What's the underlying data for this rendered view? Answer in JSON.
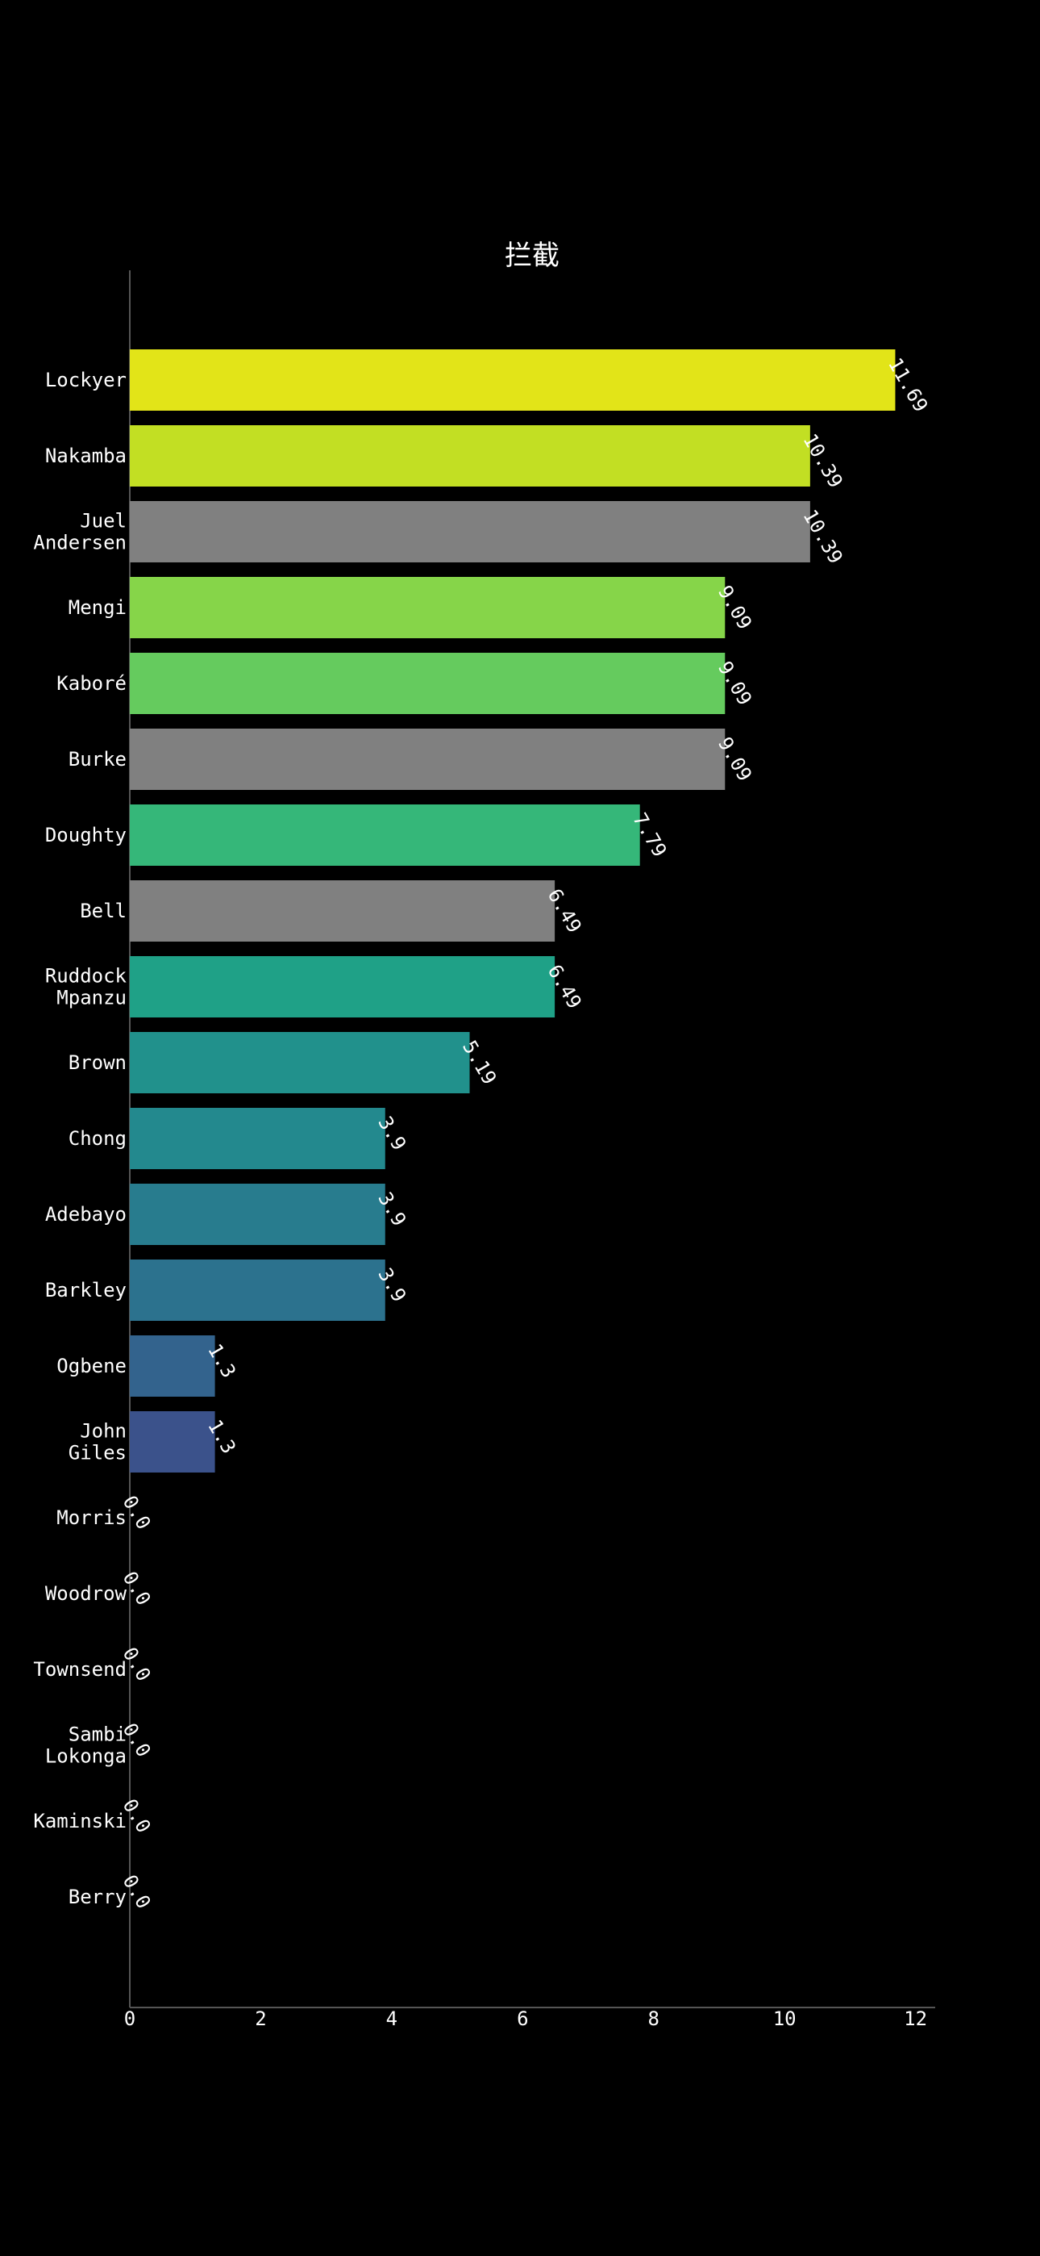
{
  "chart_data": {
    "type": "bar",
    "orientation": "horizontal",
    "title": "拦截",
    "xlabel": "",
    "ylabel": "",
    "xlim": [
      0,
      12.3
    ],
    "xticks": [
      0,
      2,
      4,
      6,
      8,
      10,
      12
    ],
    "xtick_labels": [
      "0",
      "2",
      "4",
      "6",
      "8",
      "10",
      "12"
    ],
    "grid": false,
    "categories": [
      [
        "Lockyer"
      ],
      [
        "Nakamba"
      ],
      [
        "Juel",
        "Andersen"
      ],
      [
        "Mengi"
      ],
      [
        "Kaboré"
      ],
      [
        "Burke"
      ],
      [
        "Doughty"
      ],
      [
        "Bell"
      ],
      [
        "Ruddock",
        "Mpanzu"
      ],
      [
        "Brown"
      ],
      [
        "Chong"
      ],
      [
        "Adebayo"
      ],
      [
        "Barkley"
      ],
      [
        "Ogbene"
      ],
      [
        "John",
        "Giles"
      ],
      [
        "Morris"
      ],
      [
        "Woodrow"
      ],
      [
        "Townsend"
      ],
      [
        "Sambi",
        "Lokonga"
      ],
      [
        "Kaminski"
      ],
      [
        "Berry"
      ]
    ],
    "values": [
      11.69,
      10.39,
      10.39,
      9.09,
      9.09,
      9.09,
      7.79,
      6.49,
      6.49,
      5.19,
      3.9,
      3.9,
      3.9,
      1.3,
      1.3,
      0.0,
      0.0,
      0.0,
      0.0,
      0.0,
      0.0
    ],
    "value_labels": [
      "11.69",
      "10.39",
      "10.39",
      "9.09",
      "9.09",
      "9.09",
      "7.79",
      "6.49",
      "6.49",
      "5.19",
      "3.9",
      "3.9",
      "3.9",
      "1.3",
      "1.3",
      "0.0",
      "0.0",
      "0.0",
      "0.0",
      "0.0",
      "0.0"
    ],
    "colors": [
      "#e2e418",
      "#c2df23",
      "#808080",
      "#86d549",
      "#65cb5e",
      "#808080",
      "#35b779",
      "#808080",
      "#1fa187",
      "#21918c",
      "#23898e",
      "#287c8e",
      "#2c728e",
      "#33638d",
      "#3b528b",
      "#404688",
      "#443983",
      "#472d7b",
      "#481f70",
      "#48186a",
      "#440154"
    ]
  }
}
